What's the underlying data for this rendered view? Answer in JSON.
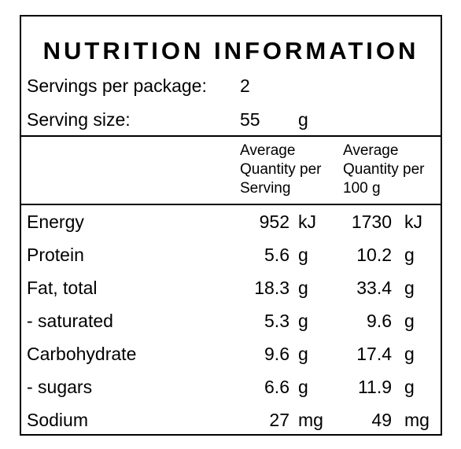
{
  "title": "NUTRITION INFORMATION",
  "servings": {
    "label": "Servings per package:",
    "value": "2"
  },
  "serving_size": {
    "label": "Serving size:",
    "value": "55",
    "unit": "g"
  },
  "header": {
    "per_serving": [
      "Average",
      "Quantity per",
      "Serving"
    ],
    "per_100g": [
      "Average",
      "Quantity per",
      "100 g"
    ]
  },
  "rows": [
    {
      "name": "Energy",
      "per_serving": "952",
      "unit1": "kJ",
      "per_100g": "1730",
      "unit2": "kJ"
    },
    {
      "name": "Protein",
      "per_serving": "5.6",
      "unit1": "g",
      "per_100g": "10.2",
      "unit2": "g"
    },
    {
      "name": "Fat, total",
      "per_serving": "18.3",
      "unit1": "g",
      "per_100g": "33.4",
      "unit2": "g"
    },
    {
      "name": "- saturated",
      "per_serving": "5.3",
      "unit1": "g",
      "per_100g": "9.6",
      "unit2": "g"
    },
    {
      "name": "Carbohydrate",
      "per_serving": "9.6",
      "unit1": "g",
      "per_100g": "17.4",
      "unit2": "g"
    },
    {
      "name": "- sugars",
      "per_serving": "6.6",
      "unit1": "g",
      "per_100g": "11.9",
      "unit2": "g"
    },
    {
      "name": "Sodium",
      "per_serving": "27",
      "unit1": "mg",
      "per_100g": "49",
      "unit2": "mg"
    }
  ]
}
